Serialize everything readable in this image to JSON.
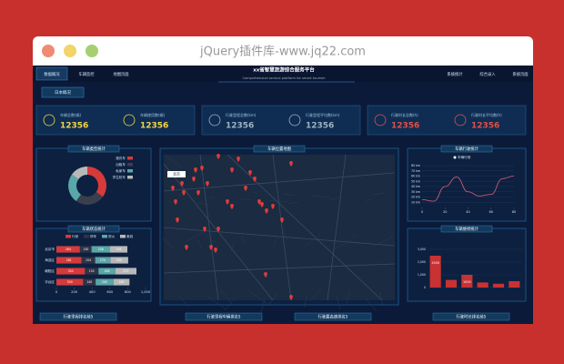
{
  "window": {
    "title": "jQuery插件库-www.jq22.com"
  },
  "nav": {
    "tabs": [
      "数据概况",
      "车辆监控",
      "地图页面"
    ],
    "title": "xx省智慧旅游综合服务平台",
    "subtitle": "Comprehensive service platform for smart tourism",
    "links": [
      "系统统计",
      "综合录入",
      "系统页面"
    ],
    "button": "日本概况"
  },
  "stats": [
    {
      "label": "车辆总数(辆)",
      "value": 12356,
      "color": "#f5d547"
    },
    {
      "label": "车辆使用数(辆)",
      "value": 12356,
      "color": "#f5d547"
    },
    {
      "label": "行驶里程总数(km)",
      "value": 12356,
      "color": "#9fb2c4"
    },
    {
      "label": "行驶里程平均数(km)",
      "value": 12356,
      "color": "#9fb2c4"
    },
    {
      "label": "行驶时长总数(h)",
      "value": 12356,
      "color": "#e0504a"
    },
    {
      "label": "行驶时长平均数(h)",
      "value": 12356,
      "color": "#e0504a"
    }
  ],
  "panels": {
    "types": "车辆类型统计",
    "status": "车辆状态统计",
    "map": "车辆位置地图",
    "trend": "车辆行驶统计",
    "repair": "车辆维修统计",
    "bottom": [
      "行驶里程排名前5",
      "行驶里程车辆排名5",
      "行驶最高速排名5",
      "行驶时长排名前5"
    ]
  },
  "donut": {
    "type": "pie",
    "categories": [
      "观光车",
      "出租车",
      "私家车",
      "学生校车"
    ],
    "values": [
      35,
      25,
      25,
      15
    ],
    "colors": [
      "#d63a3a",
      "#3a3f4e",
      "#5aa6a8",
      "#b8b8b8"
    ]
  },
  "status": {
    "type": "bar",
    "orientation": "horizontal",
    "categories": [
      "北京市",
      "海淀区",
      "朝阳区",
      "丰台区"
    ],
    "series": [
      {
        "name": "行驶",
        "color": "#d63a3a",
        "values": [
          264,
          281,
          320,
          300
        ]
      },
      {
        "name": "停车",
        "color": "#2e3446",
        "values": [
          130,
          154,
          152,
          140
        ]
      },
      {
        "name": "熄火",
        "color": "#5aa6a8",
        "values": [
          208,
          170,
          189,
          200
        ]
      },
      {
        "name": "离线",
        "color": "#b8b8b8",
        "values": [
          194,
          200,
          237,
          180
        ]
      }
    ],
    "xlim": [
      0,
      1000
    ],
    "xticks": [
      0,
      200,
      400,
      600,
      800,
      {
        "value": 1000,
        "label": "1,000"
      }
    ]
  },
  "trend": {
    "type": "line",
    "legend": "车辆行驶",
    "x": [
      0,
      10,
      20,
      30,
      40,
      50,
      60,
      70,
      80
    ],
    "values": [
      15,
      12,
      40,
      58,
      30,
      22,
      25,
      55,
      60
    ],
    "color": "#e0607a",
    "xlim": [
      0,
      80
    ],
    "xticks": [
      0,
      20,
      40,
      60,
      80
    ],
    "ylim": [
      0,
      80
    ],
    "yticks": [
      {
        "value": 10,
        "label": "10 km"
      },
      {
        "value": 20,
        "label": "20 km"
      },
      {
        "value": 30,
        "label": "30 km"
      },
      {
        "value": 40,
        "label": "40 km"
      },
      {
        "value": 50,
        "label": "50 km"
      },
      {
        "value": 60,
        "label": "60 km"
      },
      {
        "value": 70,
        "label": "70 km"
      },
      {
        "value": 80,
        "label": "80 km"
      }
    ]
  },
  "repair": {
    "type": "bar",
    "categories": [
      null,
      null,
      null,
      null,
      null,
      null
    ],
    "values": [
      2500,
      600,
      1000,
      400,
      300,
      500
    ],
    "value_labels": [
      "2500",
      null,
      "1000",
      null,
      null,
      null
    ],
    "color": "#c83232",
    "ylim": [
      0,
      3000
    ],
    "yticks": [
      0,
      {
        "value": 1000,
        "label": "1,000"
      },
      {
        "value": 2000,
        "label": "2,000"
      },
      {
        "value": 3000,
        "label": "3,000"
      }
    ]
  },
  "map": {
    "city": "北京"
  }
}
